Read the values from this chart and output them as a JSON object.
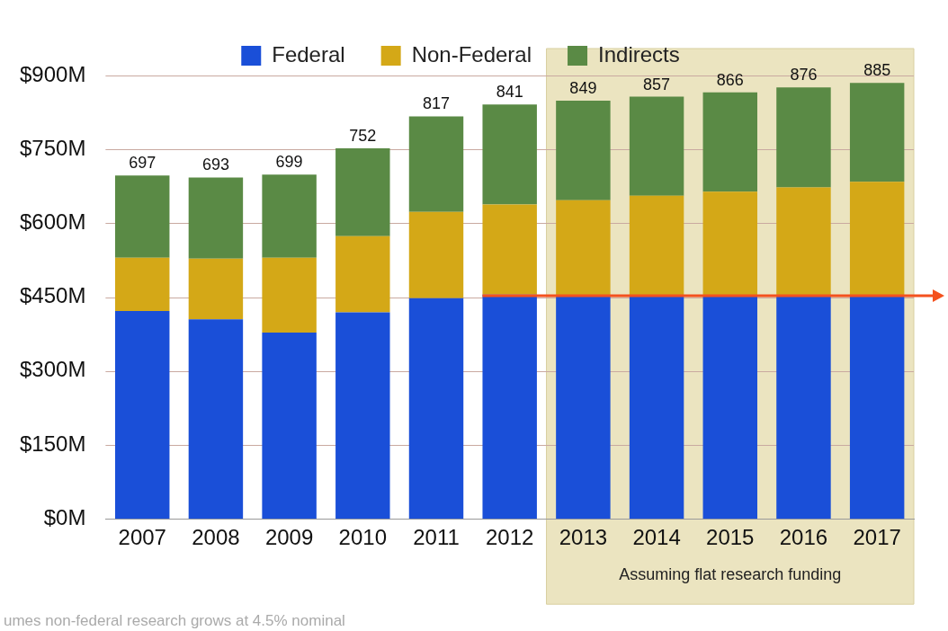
{
  "chart_data": {
    "type": "bar",
    "stacked": true,
    "categories": [
      "2007",
      "2008",
      "2009",
      "2010",
      "2011",
      "2012",
      "2013",
      "2014",
      "2015",
      "2016",
      "2017"
    ],
    "series": [
      {
        "name": "Federal",
        "color": "#1a4fd8",
        "values": [
          422,
          405,
          378,
          419,
          448,
          455,
          453,
          453,
          453,
          453,
          453
        ]
      },
      {
        "name": "Non-Federal",
        "color": "#d4a817",
        "values": [
          108,
          123,
          152,
          155,
          175,
          183,
          194,
          203,
          211,
          220,
          231
        ]
      },
      {
        "name": "Indirects",
        "color": "#5a8a45",
        "values": [
          167,
          165,
          169,
          178,
          194,
          203,
          202,
          201,
          202,
          203,
          201
        ]
      }
    ],
    "totals": [
      "697",
      "693",
      "699",
      "752",
      "817",
      "841",
      "849",
      "857",
      "866",
      "876",
      "885"
    ],
    "ylim": [
      0,
      900
    ],
    "yticks": [
      {
        "value": 0,
        "label": "$0M"
      },
      {
        "value": 150,
        "label": "$150M"
      },
      {
        "value": 300,
        "label": "$300M"
      },
      {
        "value": 450,
        "label": "$450M"
      },
      {
        "value": 600,
        "label": "$600M"
      },
      {
        "value": 750,
        "label": "$750M"
      },
      {
        "value": 900,
        "label": "$900M"
      }
    ],
    "grid": "y",
    "legend": "top",
    "bands": [
      {
        "axis": "x",
        "from": "2013",
        "to": "2017",
        "label": "Assuming flat research funding",
        "color": "#ebe4c0"
      }
    ],
    "ref_lines": [
      {
        "axis": "y",
        "value": 453,
        "color": "#f4511e"
      }
    ],
    "annotations": [
      "umes non-federal research grows at 4.5% nominal"
    ]
  }
}
